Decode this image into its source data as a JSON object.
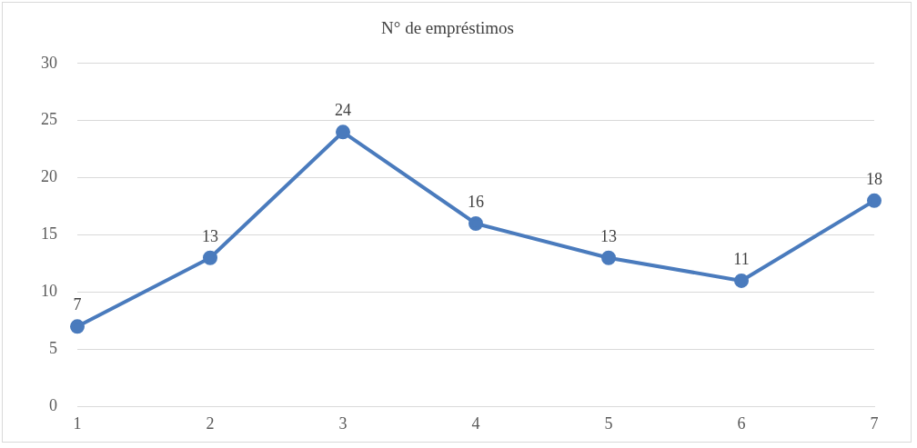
{
  "chart_data": {
    "type": "line",
    "title": "N° de empréstimos",
    "categories": [
      "1",
      "2",
      "3",
      "4",
      "5",
      "6",
      "7"
    ],
    "series": [
      {
        "color": "#4a7bbd",
        "values": [
          7,
          13,
          24,
          16,
          13,
          11,
          18
        ]
      }
    ],
    "ylim": [
      0,
      30
    ],
    "yticks": [
      0,
      5,
      10,
      15,
      20,
      25,
      30
    ],
    "grid": "y",
    "legend": false,
    "marker": "circle",
    "line_style": "solid",
    "data_labels": true
  }
}
